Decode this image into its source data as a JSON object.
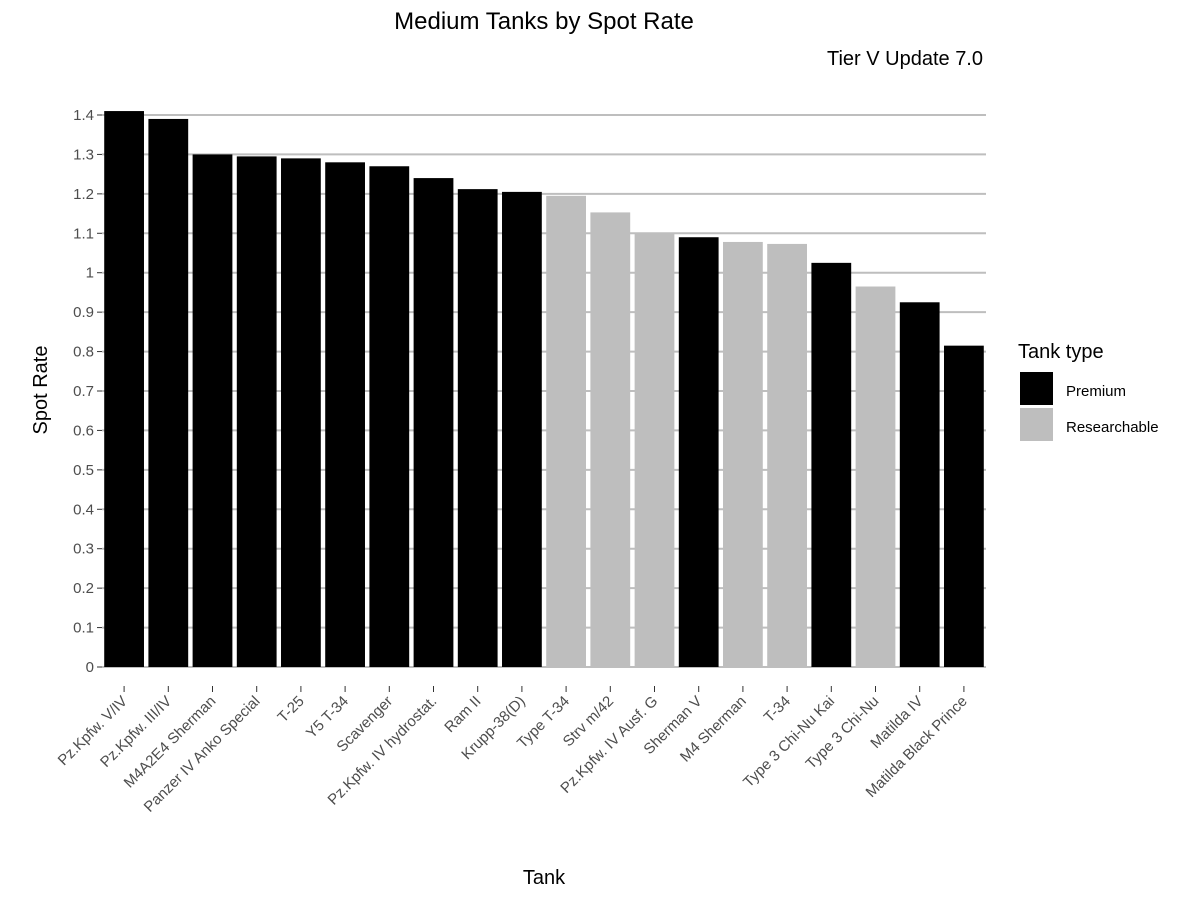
{
  "chart_data": {
    "type": "bar",
    "title": "Medium Tanks by Spot Rate",
    "subtitle": "Tier V Update 7.0",
    "xlabel": "Tank",
    "ylabel": "Spot Rate",
    "ylim": [
      0,
      1.4
    ],
    "yticks": [
      "0",
      "0.1",
      "0.2",
      "0.3",
      "0.4",
      "0.5",
      "0.6",
      "0.7",
      "0.8",
      "0.9",
      "1",
      "1.1",
      "1.2",
      "1.3",
      "1.4"
    ],
    "grid": "horizontal",
    "legend": {
      "title": "Tank type",
      "placement": "right",
      "entries": [
        {
          "label": "Premium",
          "color": "#000000"
        },
        {
          "label": "Researchable",
          "color": "#bebebe"
        }
      ]
    },
    "categories": [
      "Pz.Kpfw. V/IV",
      "Pz.Kpfw. III/IV",
      "M4A2E4 Sherman",
      "Panzer IV Anko Special",
      "T-25",
      "Y5 T-34",
      "Scavenger",
      "Pz.Kpfw. IV hydrostat.",
      "Ram II",
      "Krupp-38(D)",
      "Type T-34",
      "Strv m/42",
      "Pz.Kpfw. IV Ausf. G",
      "Sherman V",
      "M4 Sherman",
      "T-34",
      "Type 3 Chi-Nu Kai",
      "Type 3 Chi-Nu",
      "Matilda IV",
      "Matilda Black Prince"
    ],
    "values": [
      1.41,
      1.39,
      1.3,
      1.295,
      1.29,
      1.28,
      1.27,
      1.24,
      1.212,
      1.205,
      1.195,
      1.153,
      1.1,
      1.09,
      1.078,
      1.073,
      1.025,
      0.965,
      0.925,
      0.815
    ],
    "types": [
      "Premium",
      "Premium",
      "Premium",
      "Premium",
      "Premium",
      "Premium",
      "Premium",
      "Premium",
      "Premium",
      "Premium",
      "Researchable",
      "Researchable",
      "Researchable",
      "Premium",
      "Researchable",
      "Researchable",
      "Premium",
      "Researchable",
      "Premium",
      "Premium"
    ]
  }
}
